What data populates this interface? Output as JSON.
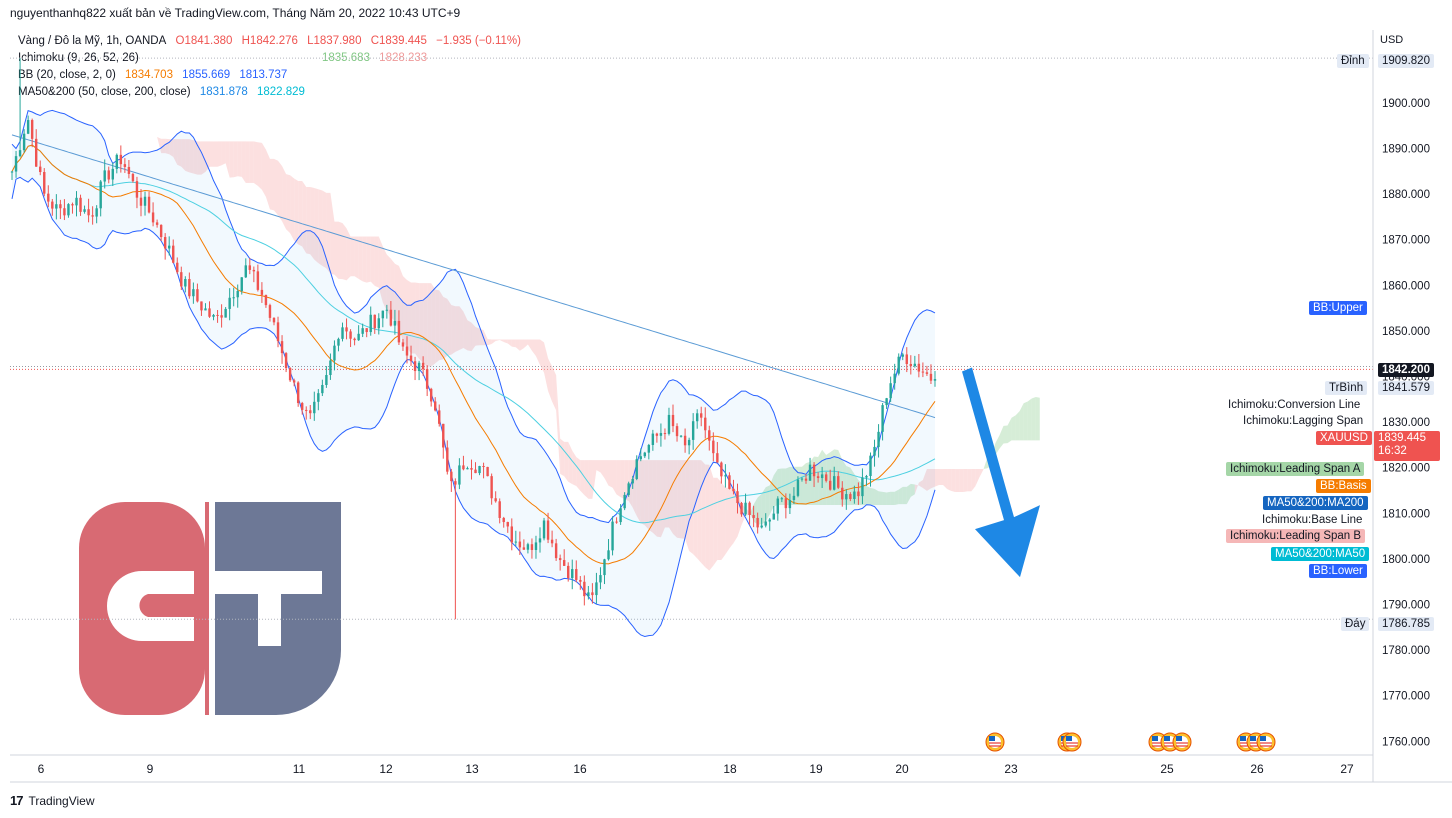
{
  "caption": "nguyenthanhq822 xuất bản về TradingView.com, Tháng Năm 20, 2022 10:43 UTC+9",
  "legend": {
    "main": {
      "symbol": "Vàng / Đô la Mỹ, 1h, OANDA",
      "o": "O1841.380",
      "h": "H1842.276",
      "l": "L1837.980",
      "c": "C1839.445",
      "chg": "−1.935 (−0.11%)"
    },
    "ichimoku": {
      "label": "Ichimoku (9, 26, 52, 26)",
      "v1": "1835.683",
      "v2": "1828.233"
    },
    "bb": {
      "label": "BB (20, close, 2, 0)",
      "basis": "1834.703",
      "upper": "1855.669",
      "lower": "1813.737"
    },
    "ma": {
      "label": "MA50&200 (50, close, 200, close)",
      "ma50": "1831.878",
      "ma200": "1822.829"
    }
  },
  "currency": "USD",
  "price_tags": {
    "top_label": "Đỉnh",
    "top_value": "1909.820",
    "bb_upper": "BB:Upper",
    "high_line": "1842.200",
    "avg_label": "TrBình",
    "avg_value": "1841.579",
    "conv": "Ichimoku:Conversion Line",
    "lag": "Ichimoku:Lagging Span",
    "symbol": "XAUUSD",
    "last": "1839.445",
    "countdown": "16:32",
    "span_a": "Ichimoku:Leading Span A",
    "bb_basis": "BB:Basis",
    "ma200": "MA50&200:MA200",
    "base": "Ichimoku:Base Line",
    "span_b": "Ichimoku:Leading Span B",
    "ma50": "MA50&200:MA50",
    "bb_lower": "BB:Lower",
    "bottom_label": "Đáy",
    "bottom_value": "1786.785"
  },
  "colors": {
    "up": "#26a69a",
    "down": "#ef5350",
    "bb": "#2962ff",
    "basis": "#f57c00",
    "ma200": "#5b9bd5",
    "ma50": "#4dd0e1",
    "cloud_green": "#a5d6a7",
    "cloud_red": "#f8bbbb",
    "arrow": "#1e88e5",
    "logo_red": "#d86a73",
    "logo_blue": "#6d7896"
  },
  "watermark": "TradingView",
  "logo_text": "CT",
  "chart_data": {
    "type": "candlestick",
    "title": "Vàng / Đô la Mỹ, 1h, OANDA",
    "ylabel": "USD",
    "ylim": [
      1757,
      1916
    ],
    "yticks": [
      "1900.000",
      "1890.000",
      "1880.000",
      "1870.000",
      "1860.000",
      "1850.000",
      "1840.000",
      "1830.000",
      "1820.000",
      "1810.000",
      "1800.000",
      "1790.000",
      "1780.000",
      "1770.000",
      "1760.000"
    ],
    "xticks": [
      "6",
      "9",
      "11",
      "12",
      "13",
      "16",
      "18",
      "19",
      "20",
      "23",
      "25",
      "26",
      "27"
    ],
    "bars": 230,
    "markers": {
      "high": 1909.82,
      "low": 1786.785,
      "avg": 1841.579,
      "last": 1839.445,
      "high_line": 1842.2
    },
    "close_path": [
      1885,
      1897,
      1880,
      1876,
      1879,
      1875,
      1884,
      1888,
      1880,
      1875,
      1868,
      1860,
      1856,
      1852,
      1858,
      1864,
      1858,
      1848,
      1838,
      1830,
      1838,
      1852,
      1848,
      1852,
      1855,
      1845,
      1842,
      1835,
      1815,
      1822,
      1820,
      1812,
      1805,
      1802,
      1808,
      1800,
      1796,
      1790,
      1802,
      1814,
      1822,
      1826,
      1830,
      1824,
      1832,
      1820,
      1814,
      1810,
      1806,
      1812,
      1814,
      1820,
      1818,
      1815,
      1814,
      1822,
      1838,
      1845,
      1842,
      1839
    ],
    "projection": {
      "direction": "down",
      "from": 1840,
      "to": 1796
    }
  }
}
